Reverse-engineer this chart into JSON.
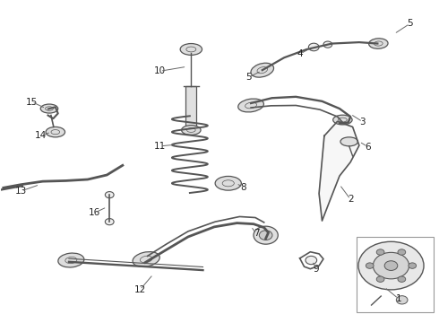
{
  "title": "",
  "background_color": "#ffffff",
  "figure_width": 4.9,
  "figure_height": 3.6,
  "dpi": 100,
  "label_fontsize": 7.5,
  "label_color": "#222222",
  "line_color": "#555555"
}
